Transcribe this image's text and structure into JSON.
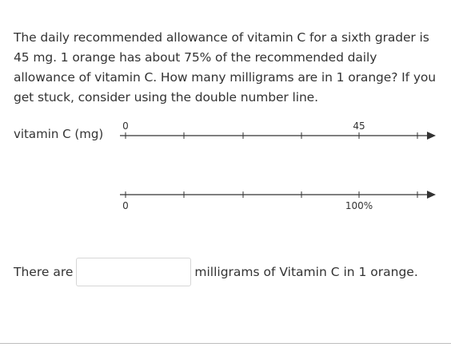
{
  "problem": {
    "text": "The daily recommended allowance of vitamin C for a sixth grader is 45 mg. 1 orange has about 75% of the recommended daily allowance of vitamin C. How many milligrams are in 1 orange? If you get stuck, consider using the double number line."
  },
  "number_line": {
    "top_label": "vitamin C (mg)",
    "top_tick_labels": [
      "0",
      "",
      "",
      "",
      "45",
      ""
    ],
    "bottom_tick_labels": [
      "0",
      "",
      "",
      "",
      "100%",
      ""
    ]
  },
  "answer": {
    "prefix": "There are",
    "value": "",
    "placeholder": "",
    "suffix": "milligrams of Vitamin C in 1 orange."
  }
}
